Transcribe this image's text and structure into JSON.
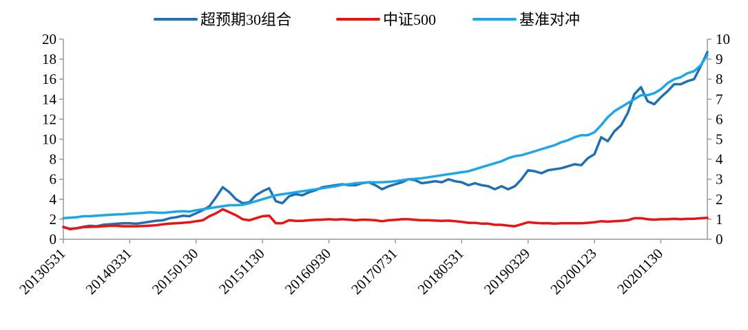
{
  "chart_data": {
    "type": "line",
    "title": "",
    "xlabel": "",
    "ylabel": "",
    "y_left_lim": [
      0,
      20
    ],
    "y_left_ticks": [
      0,
      2,
      4,
      6,
      8,
      10,
      12,
      14,
      16,
      18,
      20
    ],
    "y_right_lim": [
      0,
      10
    ],
    "y_right_ticks": [
      0,
      1,
      2,
      3,
      4,
      5,
      6,
      7,
      8,
      9,
      10
    ],
    "x_tick_labels": [
      "20130531",
      "20140331",
      "20150130",
      "20151130",
      "20160930",
      "20170731",
      "20180531",
      "20190329",
      "20200123",
      "20201130"
    ],
    "x_tick_index": [
      0,
      10,
      20,
      30,
      40,
      50,
      60,
      70,
      80,
      90
    ],
    "legend_position": "top-center",
    "grid": false,
    "series": [
      {
        "name": "超预期30组合",
        "axis": "left",
        "color": "#1F6FB4",
        "values": [
          1.2,
          1.05,
          1.1,
          1.25,
          1.35,
          1.3,
          1.45,
          1.5,
          1.55,
          1.6,
          1.6,
          1.55,
          1.65,
          1.75,
          1.85,
          1.9,
          2.1,
          2.2,
          2.35,
          2.3,
          2.6,
          2.9,
          3.3,
          4.2,
          5.2,
          4.7,
          4.0,
          3.6,
          3.7,
          4.4,
          4.8,
          5.1,
          3.8,
          3.6,
          4.3,
          4.5,
          4.4,
          4.7,
          4.9,
          5.2,
          5.3,
          5.4,
          5.5,
          5.4,
          5.4,
          5.6,
          5.7,
          5.4,
          5.0,
          5.3,
          5.5,
          5.7,
          6.0,
          5.9,
          5.6,
          5.7,
          5.8,
          5.7,
          6.0,
          5.8,
          5.7,
          5.4,
          5.6,
          5.4,
          5.3,
          5.0,
          5.3,
          5.0,
          5.3,
          6.0,
          6.9,
          6.8,
          6.6,
          6.9,
          7.0,
          7.1,
          7.3,
          7.5,
          7.4,
          8.1,
          8.5,
          10.2,
          9.8,
          10.8,
          11.4,
          12.6,
          14.5,
          15.2,
          13.8,
          13.5,
          14.2,
          14.8,
          15.5,
          15.5,
          15.8,
          16.0,
          17.3,
          18.7
        ]
      },
      {
        "name": "中证500",
        "axis": "right",
        "color": "#EE1111",
        "values": [
          0.62,
          0.5,
          0.55,
          0.6,
          0.62,
          0.63,
          0.65,
          0.67,
          0.67,
          0.65,
          0.65,
          0.65,
          0.66,
          0.68,
          0.7,
          0.75,
          0.78,
          0.8,
          0.82,
          0.85,
          0.9,
          0.95,
          1.15,
          1.3,
          1.5,
          1.35,
          1.2,
          1.0,
          0.95,
          1.05,
          1.15,
          1.18,
          0.8,
          0.8,
          0.95,
          0.92,
          0.92,
          0.95,
          0.97,
          0.98,
          1.0,
          0.98,
          1.0,
          0.98,
          0.95,
          0.98,
          0.97,
          0.95,
          0.9,
          0.95,
          0.97,
          1.0,
          1.0,
          0.97,
          0.95,
          0.95,
          0.93,
          0.92,
          0.93,
          0.9,
          0.87,
          0.82,
          0.82,
          0.78,
          0.78,
          0.72,
          0.72,
          0.68,
          0.65,
          0.75,
          0.85,
          0.82,
          0.8,
          0.8,
          0.78,
          0.8,
          0.8,
          0.8,
          0.8,
          0.82,
          0.85,
          0.9,
          0.88,
          0.9,
          0.92,
          0.95,
          1.05,
          1.05,
          1.0,
          0.98,
          1.0,
          1.0,
          1.02,
          1.0,
          1.02,
          1.02,
          1.05,
          1.07
        ]
      },
      {
        "name": "基准对冲",
        "axis": "right",
        "color": "#1AA7EA",
        "values": [
          1.05,
          1.08,
          1.1,
          1.15,
          1.15,
          1.18,
          1.2,
          1.22,
          1.24,
          1.25,
          1.28,
          1.3,
          1.32,
          1.35,
          1.33,
          1.32,
          1.35,
          1.38,
          1.4,
          1.38,
          1.45,
          1.5,
          1.55,
          1.6,
          1.65,
          1.7,
          1.7,
          1.72,
          1.8,
          1.9,
          2.0,
          2.1,
          2.2,
          2.25,
          2.3,
          2.35,
          2.4,
          2.45,
          2.5,
          2.55,
          2.6,
          2.65,
          2.72,
          2.75,
          2.8,
          2.82,
          2.85,
          2.85,
          2.85,
          2.87,
          2.9,
          2.95,
          3.0,
          3.02,
          3.05,
          3.1,
          3.15,
          3.2,
          3.25,
          3.3,
          3.35,
          3.4,
          3.5,
          3.6,
          3.7,
          3.8,
          3.9,
          4.05,
          4.15,
          4.2,
          4.3,
          4.4,
          4.5,
          4.6,
          4.7,
          4.85,
          4.95,
          5.1,
          5.2,
          5.2,
          5.35,
          5.7,
          6.1,
          6.4,
          6.6,
          6.8,
          7.0,
          7.2,
          7.2,
          7.3,
          7.5,
          7.8,
          8.0,
          8.1,
          8.3,
          8.4,
          8.7,
          9.2
        ]
      }
    ]
  }
}
